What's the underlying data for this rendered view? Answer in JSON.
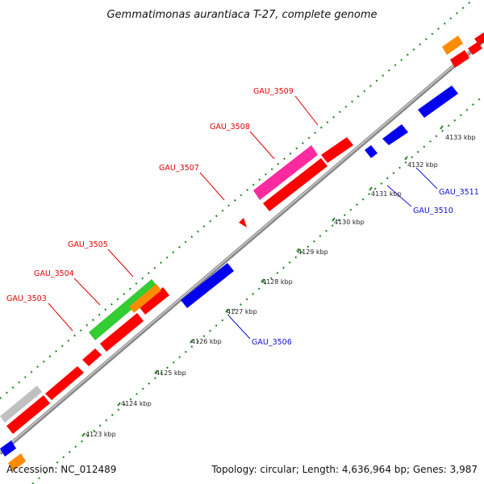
{
  "title": "Gemmatimonas aurantiaca T-27, complete genome",
  "footer": {
    "accession": "Accession: NC_012489",
    "summary": "Topology: circular; Length: 4,636,964 bp; Genes: 3,987"
  },
  "colors": {
    "forward_strand": "#ff0000",
    "reverse_strand": "#0000ee",
    "trna": "#ff8c00",
    "rrna_like": "#33cc33",
    "highlight": "#ff2aa0",
    "other": "#c0c0c0",
    "backbone": "#8a8a8a",
    "dotted_guides": "#2a8a2a"
  },
  "ticks": [
    {
      "label": "4123 kbp"
    },
    {
      "label": "4124 kbp"
    },
    {
      "label": "4125 kbp"
    },
    {
      "label": "4126 kbp"
    },
    {
      "label": "4127 kbp"
    },
    {
      "label": "4128 kbp"
    },
    {
      "label": "4129 kbp"
    },
    {
      "label": "4130 kbp"
    },
    {
      "label": "4131 kbp"
    },
    {
      "label": "4132 kbp"
    },
    {
      "label": "4133 kbp"
    }
  ],
  "gene_labels": [
    {
      "id": "GAU_3503",
      "label": "GAU_3503",
      "strand": "forward"
    },
    {
      "id": "GAU_3504",
      "label": "GAU_3504",
      "strand": "forward"
    },
    {
      "id": "GAU_3505",
      "label": "GAU_3505",
      "strand": "forward"
    },
    {
      "id": "GAU_3506",
      "label": "GAU_3506",
      "strand": "reverse"
    },
    {
      "id": "GAU_3507",
      "label": "GAU_3507",
      "strand": "forward"
    },
    {
      "id": "GAU_3508",
      "label": "GAU_3508",
      "strand": "forward"
    },
    {
      "id": "GAU_3509",
      "label": "GAU_3509",
      "strand": "forward"
    },
    {
      "id": "GAU_3510",
      "label": "GAU_3510",
      "strand": "reverse"
    },
    {
      "id": "GAU_3511",
      "label": "GAU_3511",
      "strand": "reverse"
    }
  ]
}
